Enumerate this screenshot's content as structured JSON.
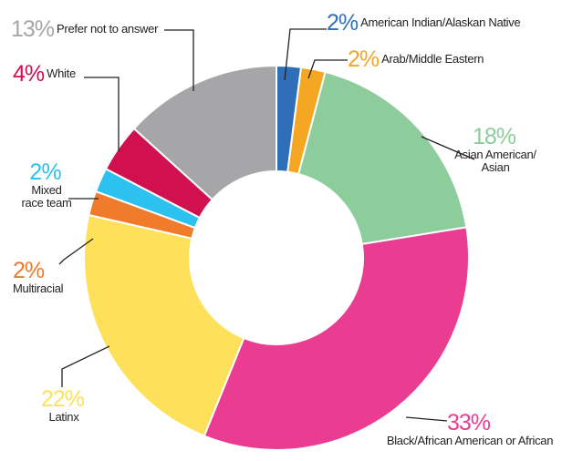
{
  "chart_data": {
    "type": "donut",
    "categories": [
      "American Indian/Alaskan Native",
      "Arab/Middle Eastern",
      "Asian American/ Asian",
      "Black/African American or African",
      "Latinx",
      "Multiracial",
      "Mixed race team",
      "White",
      "Prefer not to answer"
    ],
    "values": [
      2,
      2,
      18,
      33,
      22,
      2,
      2,
      4,
      13
    ],
    "value_labels": [
      "2%",
      "2%",
      "18%",
      "33%",
      "22%",
      "2%",
      "2%",
      "4%",
      "13%"
    ],
    "colors": [
      "#2f6fba",
      "#f5a623",
      "#8dcd9c",
      "#ea3d92",
      "#fde15b",
      "#ef7b2b",
      "#2cc1ef",
      "#d0104f",
      "#a6a6a8"
    ]
  }
}
